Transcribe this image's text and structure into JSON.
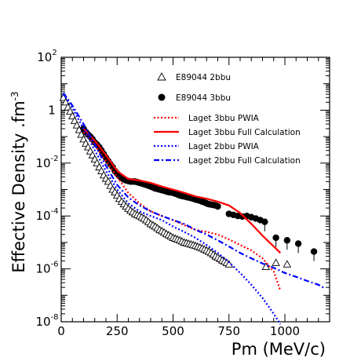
{
  "chart_data": {
    "type": "scatter",
    "xlabel": "Pm (MeV/c)",
    "ylabel": "Effective Density  .fm",
    "ylabel_exponent": "-3",
    "xlim": [
      0,
      1200
    ],
    "ylim": [
      1e-08,
      100
    ],
    "yscale": "log",
    "x_ticks": [
      0,
      250,
      500,
      750,
      1000
    ],
    "x_tick_labels": [
      "0",
      "250",
      "500",
      "750",
      "1000"
    ],
    "y_ticks": [
      {
        "value": 100,
        "base": "10",
        "exp": "2"
      },
      {
        "value": 1,
        "base": "1",
        "exp": ""
      },
      {
        "value": 0.01,
        "base": "10",
        "exp": "-2"
      },
      {
        "value": 0.0001,
        "base": "10",
        "exp": "-4"
      },
      {
        "value": 1e-06,
        "base": "10",
        "exp": "-6"
      },
      {
        "value": 1e-08,
        "base": "10",
        "exp": "-8"
      }
    ],
    "legend_position": "top-right",
    "series": [
      {
        "name": "E89044 2bbu",
        "kind": "markers",
        "marker": "open-triangle",
        "color": "#000000",
        "x": [
          10,
          20,
          30,
          40,
          50,
          60,
          70,
          80,
          90,
          100,
          110,
          120,
          130,
          140,
          150,
          160,
          170,
          180,
          190,
          200,
          210,
          220,
          230,
          240,
          250,
          260,
          270,
          280,
          290,
          300,
          310,
          320,
          330,
          340,
          350,
          360,
          370,
          380,
          390,
          400,
          410,
          420,
          430,
          440,
          450,
          460,
          470,
          480,
          490,
          500,
          510,
          520,
          530,
          540,
          550,
          560,
          570,
          580,
          590,
          600,
          610,
          620,
          630,
          640,
          650,
          660,
          670,
          680,
          690,
          700,
          710,
          720,
          730,
          740,
          750,
          915,
          960,
          1010
        ],
        "y": [
          3.0,
          2.0,
          1.3,
          0.9,
          0.6,
          0.4,
          0.27,
          0.18,
          0.12,
          0.08,
          0.055,
          0.04,
          0.028,
          0.02,
          0.014,
          0.01,
          0.007,
          0.005,
          0.0035,
          0.0026,
          0.002,
          0.0014,
          0.001,
          0.0008,
          0.0006,
          0.00045,
          0.00035,
          0.00028,
          0.00023,
          0.00019,
          0.00016,
          0.00014,
          0.00012,
          0.00011,
          0.0001,
          9e-05,
          8e-05,
          7e-05,
          6e-05,
          5e-05,
          4.5e-05,
          4e-05,
          3.5e-05,
          3e-05,
          2.7e-05,
          2.4e-05,
          2.1e-05,
          1.9e-05,
          1.7e-05,
          1.5e-05,
          1.4e-05,
          1.3e-05,
          1.2e-05,
          1.1e-05,
          1e-05,
          9.5e-06,
          9e-06,
          8.5e-06,
          8e-06,
          7.5e-06,
          7e-06,
          6.5e-06,
          6e-06,
          5.5e-06,
          5e-06,
          4.5e-06,
          4e-06,
          3.5e-06,
          3e-06,
          2.7e-06,
          2.4e-06,
          2.1e-06,
          1.9e-06,
          1.7e-06,
          1.5e-06,
          1.2e-06,
          1.7e-06,
          1.5e-06
        ]
      },
      {
        "name": "E89044 3bbu",
        "kind": "markers",
        "marker": "filled-circle",
        "color": "#000000",
        "x": [
          100,
          110,
          120,
          130,
          140,
          150,
          160,
          170,
          180,
          190,
          200,
          210,
          220,
          230,
          240,
          250,
          260,
          270,
          280,
          290,
          300,
          310,
          320,
          330,
          340,
          350,
          360,
          370,
          380,
          390,
          400,
          410,
          420,
          430,
          440,
          450,
          460,
          470,
          480,
          490,
          500,
          510,
          520,
          530,
          540,
          550,
          560,
          570,
          580,
          590,
          600,
          610,
          620,
          630,
          640,
          650,
          660,
          670,
          680,
          690,
          700,
          750,
          770,
          790,
          810,
          830,
          850,
          870,
          890,
          910,
          960,
          1010,
          1060,
          1130
        ],
        "y": [
          0.2,
          0.15,
          0.12,
          0.1,
          0.08,
          0.06,
          0.05,
          0.04,
          0.03,
          0.022,
          0.016,
          0.012,
          0.009,
          0.007,
          0.005,
          0.004,
          0.0032,
          0.0027,
          0.0024,
          0.0022,
          0.0021,
          0.002,
          0.002,
          0.002,
          0.0019,
          0.0018,
          0.0017,
          0.0016,
          0.0015,
          0.0014,
          0.0013,
          0.0012,
          0.0011,
          0.00105,
          0.001,
          0.00095,
          0.0009,
          0.00085,
          0.0008,
          0.00078,
          0.00075,
          0.0007,
          0.00065,
          0.0006,
          0.00057,
          0.00055,
          0.00052,
          0.0005,
          0.00048,
          0.00045,
          0.00042,
          0.0004,
          0.00038,
          0.00035,
          0.00033,
          0.0003,
          0.00028,
          0.00027,
          0.00026,
          0.00025,
          0.00023,
          0.00012,
          0.00011,
          0.0001,
          9.5e-05,
          0.0001,
          9e-05,
          8e-05,
          7e-05,
          6e-05,
          1.5e-05,
          1.2e-05,
          9e-06,
          4.5e-06
        ]
      },
      {
        "name": "Laget 3bbu PWIA",
        "kind": "line",
        "style": "dotted",
        "color": "#ff0000",
        "x": [
          100,
          150,
          200,
          250,
          300,
          350,
          400,
          450,
          500,
          550,
          600,
          650,
          700,
          750,
          800,
          850,
          900,
          950,
          980
        ],
        "y": [
          0.15,
          0.05,
          0.012,
          0.003,
          0.00075,
          0.0003,
          0.00015,
          0.0001,
          7e-05,
          4.5e-05,
          3e-05,
          2.5e-05,
          2e-05,
          1.3e-05,
          8e-06,
          5e-06,
          2.5e-06,
          8e-07,
          1.5e-07
        ]
      },
      {
        "name": "Laget 3bbu Full Calculation",
        "kind": "line",
        "style": "solid",
        "color": "#ff0000",
        "x": [
          100,
          150,
          200,
          250,
          300,
          350,
          400,
          450,
          500,
          550,
          600,
          650,
          700,
          750,
          800,
          850,
          900,
          950,
          980
        ],
        "y": [
          0.2,
          0.07,
          0.02,
          0.005,
          0.0025,
          0.0022,
          0.0018,
          0.0013,
          0.001,
          0.00075,
          0.00055,
          0.00045,
          0.00035,
          0.00025,
          0.00013,
          5e-05,
          1.8e-05,
          7e-06,
          4e-06
        ]
      },
      {
        "name": "Laget 2bbu PWIA",
        "kind": "line",
        "style": "dotted",
        "color": "#0000ff",
        "x": [
          10,
          50,
          100,
          150,
          200,
          250,
          300,
          350,
          400,
          450,
          500,
          550,
          600,
          650,
          700,
          750,
          800,
          850,
          900,
          950,
          980
        ],
        "y": [
          4.0,
          1.2,
          0.2,
          0.03,
          0.005,
          0.001,
          0.0003,
          0.00015,
          0.0001,
          7e-05,
          4e-05,
          2.5e-05,
          1.5e-05,
          8e-06,
          4e-06,
          1.8e-06,
          7e-07,
          2.5e-07,
          8e-08,
          2e-08,
          8e-09
        ]
      },
      {
        "name": "Laget 2bbu Full Calculation",
        "kind": "line",
        "style": "dashdot",
        "color": "#0000ff",
        "x": [
          10,
          50,
          100,
          150,
          200,
          250,
          300,
          350,
          400,
          450,
          500,
          550,
          600,
          650,
          700,
          750,
          800,
          850,
          900,
          950,
          1000,
          1050,
          1100,
          1150,
          1180
        ],
        "y": [
          4.5,
          1.5,
          0.3,
          0.05,
          0.008,
          0.0015,
          0.0005,
          0.00025,
          0.00015,
          0.0001,
          7e-05,
          5e-05,
          3e-05,
          2e-05,
          1.2e-05,
          7e-06,
          4e-06,
          2.5e-06,
          1.6e-06,
          1.1e-06,
          7e-07,
          5e-07,
          3.5e-07,
          2.5e-07,
          1.8e-07
        ]
      }
    ]
  }
}
